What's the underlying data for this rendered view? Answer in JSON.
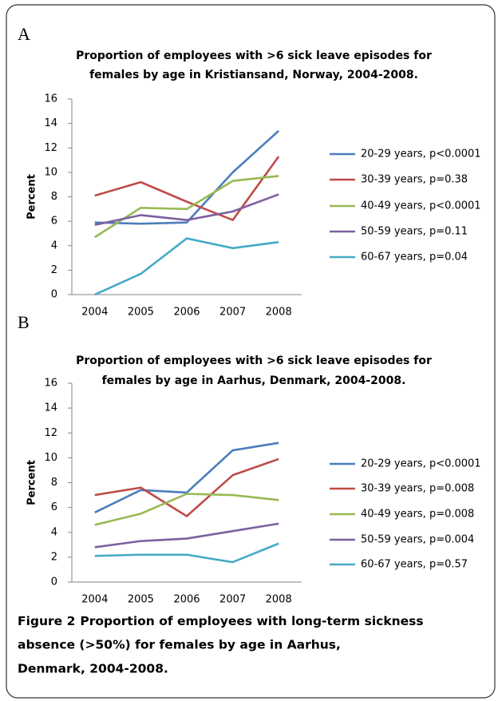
{
  "chart_data": [
    {
      "type": "line",
      "panel_label": "A",
      "title": [
        "Proportion of employees with >6 sick leave episodes for",
        "females by age in Kristiansand, Norway, 2004-2008."
      ],
      "y_label": "Percent",
      "categories": [
        "2004",
        "2005",
        "2006",
        "2007",
        "2008"
      ],
      "ylim": [
        0,
        16
      ],
      "yticks": [
        0,
        2,
        4,
        6,
        8,
        10,
        12,
        14,
        16
      ],
      "grid": false,
      "legend": "right",
      "series": [
        {
          "name": "20-29 years, p<0.0001",
          "color": "#4a7ebb",
          "values": [
            5.9,
            5.8,
            5.9,
            10.0,
            13.4
          ]
        },
        {
          "name": "30-39 years, p=0.38",
          "color": "#be4b48",
          "values": [
            8.1,
            9.2,
            7.6,
            6.1,
            11.3
          ]
        },
        {
          "name": "40-49 years, p<0.0001",
          "color": "#98b954",
          "values": [
            4.7,
            7.1,
            7.0,
            9.3,
            9.7
          ]
        },
        {
          "name": "50-59 years, p=0.11",
          "color": "#7d60a0",
          "values": [
            5.7,
            6.5,
            6.1,
            6.8,
            8.2
          ]
        },
        {
          "name": "60-67 years, p=0.04",
          "color": "#46aac5",
          "values": [
            0,
            1.7,
            4.6,
            3.8,
            4.3
          ]
        }
      ]
    },
    {
      "type": "line",
      "panel_label": "B",
      "title": [
        "Proportion of  employees with >6 sick leave episodes for",
        "females by age in Aarhus, Denmark, 2004-2008."
      ],
      "y_label": "Percent",
      "categories": [
        "2004",
        "2005",
        "2006",
        "2007",
        "2008"
      ],
      "ylim": [
        0,
        16
      ],
      "yticks": [
        0,
        2,
        4,
        6,
        8,
        10,
        12,
        14,
        16
      ],
      "grid": false,
      "legend": "right",
      "series": [
        {
          "name": "20-29 years, p<0.0001",
          "color": "#4a7ebb",
          "values": [
            5.6,
            7.4,
            7.2,
            10.6,
            11.2
          ]
        },
        {
          "name": "30-39 years, p=0.008",
          "color": "#be4b48",
          "values": [
            7.0,
            7.6,
            5.3,
            8.6,
            9.9
          ]
        },
        {
          "name": "40-49 years, p=0.008",
          "color": "#98b954",
          "values": [
            4.6,
            5.5,
            7.1,
            7.0,
            6.6
          ]
        },
        {
          "name": "50-59 years, p=0.004",
          "color": "#7d60a0",
          "values": [
            2.8,
            3.3,
            3.5,
            4.1,
            4.7
          ]
        },
        {
          "name": "60-67 years, p=0.57",
          "color": "#46aac5",
          "values": [
            2.1,
            2.2,
            2.2,
            1.6,
            3.1
          ]
        }
      ]
    }
  ],
  "caption": {
    "label": "Figure 2",
    "lines": [
      "Proportion of employees with long-term sickness",
      "absence (>50%) for females by age in Aarhus,",
      "Denmark, 2004-2008."
    ]
  }
}
